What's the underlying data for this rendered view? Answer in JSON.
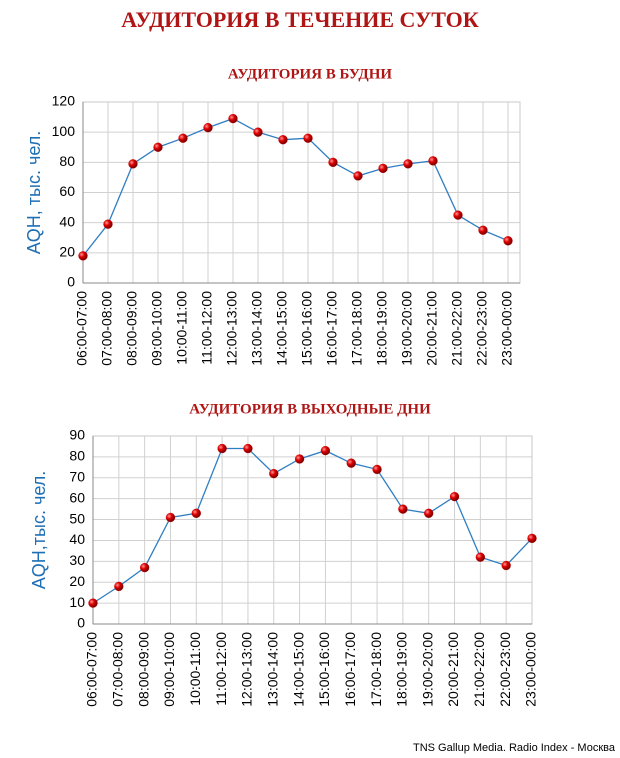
{
  "title": "АУДИТОРИЯ В ТЕЧЕНИЕ СУТОК",
  "source": "TNS Gallup Media. Radio Index - Москва",
  "chart_data": [
    {
      "type": "line",
      "title": "АУДИТОРИЯ В БУДНИ",
      "y_label": "AQH, тыс. чел.",
      "categories": [
        "06:00-07:00",
        "07:00-08:00",
        "08:00-09:00",
        "09:00-10:00",
        "10:00-11:00",
        "11:00-12:00",
        "12:00-13:00",
        "13:00-14:00",
        "14:00-15:00",
        "15:00-16:00",
        "16:00-17:00",
        "17:00-18:00",
        "18:00-19:00",
        "19:00-20:00",
        "20:00-21:00",
        "21:00-22:00",
        "22:00-23:00",
        "23:00-00:00"
      ],
      "values": [
        18,
        39,
        79,
        90,
        96,
        103,
        109,
        100,
        95,
        96,
        80,
        71,
        76,
        79,
        81,
        45,
        35,
        28
      ],
      "color": "#2f7ec2",
      "marker_color": "#d00000",
      "ylim": [
        0,
        120
      ],
      "yticks": [
        0,
        20,
        40,
        60,
        80,
        100,
        120
      ],
      "grid": true
    },
    {
      "type": "line",
      "title": "АУДИТОРИЯ В ВЫХОДНЫЕ ДНИ",
      "y_label": "AQH,тыс. чел.",
      "categories": [
        "06:00-07:00",
        "07:00-08:00",
        "08:00-09:00",
        "09:00-10:00",
        "10:00-11:00",
        "11:00-12:00",
        "12:00-13:00",
        "13:00-14:00",
        "14:00-15:00",
        "15:00-16:00",
        "16:00-17:00",
        "17:00-18:00",
        "18:00-19:00",
        "19:00-20:00",
        "20:00-21:00",
        "21:00-22:00",
        "22:00-23:00",
        "23:00-00:00"
      ],
      "values": [
        10,
        18,
        27,
        51,
        53,
        84,
        84,
        72,
        79,
        83,
        77,
        74,
        55,
        53,
        61,
        32,
        28,
        41
      ],
      "color": "#2f7ec2",
      "marker_color": "#d00000",
      "ylim": [
        0,
        90
      ],
      "yticks": [
        0,
        10,
        20,
        30,
        40,
        50,
        60,
        70,
        80,
        90
      ],
      "grid": true
    }
  ]
}
